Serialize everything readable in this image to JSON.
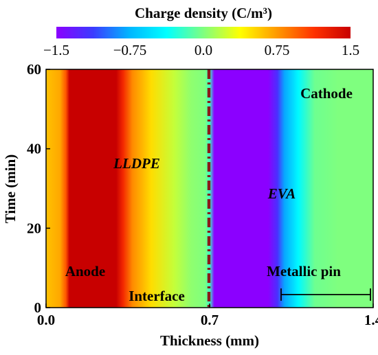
{
  "chart_data": {
    "type": "heatmap",
    "colorbar": {
      "title": "Charge density (C/m³)",
      "min": -1.5,
      "max": 1.5,
      "ticks": [
        -1.5,
        -0.75,
        0.0,
        0.75,
        1.5
      ],
      "tick_labels": [
        "−1.5",
        "−0.75",
        "0.0",
        "0.75",
        "1.5"
      ],
      "colors": [
        "#8b00ff",
        "#3b3bff",
        "#00b7ff",
        "#00ffff",
        "#7fff7f",
        "#ffff00",
        "#ff9900",
        "#ff3300",
        "#c80000"
      ]
    },
    "xlabel": "Thickness (mm)",
    "ylabel": "Time (min)",
    "xlim": [
      0.0,
      1.4
    ],
    "ylim": [
      0,
      60
    ],
    "x_ticks": [
      0.0,
      0.7,
      1.4
    ],
    "x_tick_labels": [
      "0.0",
      "0.7",
      "1.4"
    ],
    "y_ticks": [
      0,
      20,
      40,
      60
    ],
    "y_tick_labels": [
      "0",
      "20",
      "40",
      "60"
    ],
    "thickness_profile": {
      "x": [
        0.0,
        0.06,
        0.085,
        0.1,
        0.3,
        0.33,
        0.37,
        0.45,
        0.55,
        0.62,
        0.68,
        0.7,
        0.72,
        0.74,
        0.95,
        0.99,
        1.02,
        1.08,
        1.15,
        1.25,
        1.4
      ],
      "value": [
        0.6,
        0.7,
        1.0,
        1.5,
        1.5,
        1.2,
        0.8,
        0.5,
        0.2,
        0.05,
        0.0,
        -0.2,
        -1.5,
        -1.5,
        -1.5,
        -1.2,
        -0.8,
        -0.4,
        -0.05,
        0.0,
        0.0
      ]
    },
    "interface_x": 0.7,
    "annotations": {
      "cathode": "Cathode",
      "anode": "Anode",
      "lldpe": "LLDPE",
      "eva": "EVA",
      "interface": "Interface",
      "metallic_pin": "Metallic pin"
    },
    "metallic_pin_range": [
      1.0,
      1.4
    ]
  },
  "colors": {
    "interface_line": "#8b1a1a",
    "anode_text": "#5a1a1a",
    "interface_text": "#8b2500",
    "lldpe_text": "#6a5acd",
    "eva_text": "#b8860b"
  }
}
